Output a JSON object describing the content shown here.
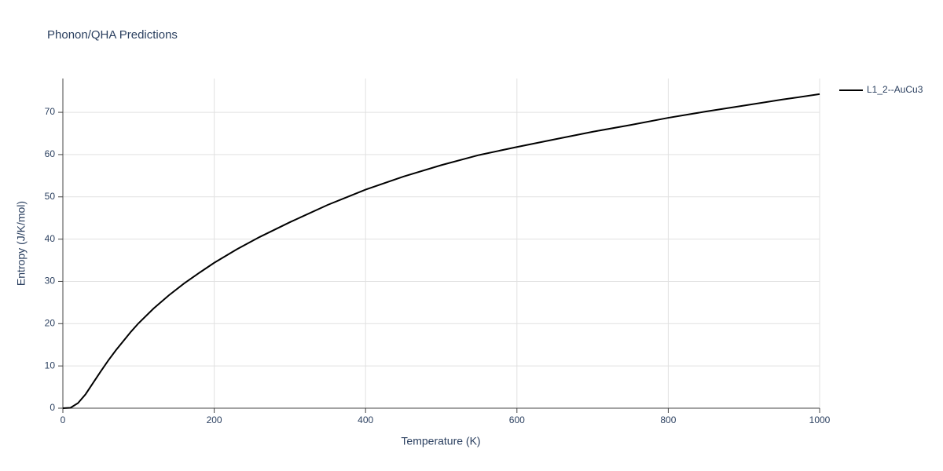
{
  "chart_data": {
    "type": "line",
    "title": "Phonon/QHA Predictions",
    "x_label": "Temperature (K)",
    "y_label": "Entropy (J/K/mol)",
    "x": [
      0,
      10,
      20,
      30,
      40,
      50,
      60,
      70,
      80,
      90,
      100,
      120,
      140,
      160,
      180,
      200,
      230,
      260,
      300,
      350,
      400,
      450,
      500,
      550,
      600,
      650,
      700,
      750,
      800,
      850,
      900,
      950,
      1000
    ],
    "series": [
      {
        "name": "L1_2--AuCu3",
        "color": "#000000",
        "values": [
          0,
          0.1,
          1.2,
          3.3,
          6,
          8.7,
          11.3,
          13.7,
          15.9,
          18.1,
          20.1,
          23.6,
          26.7,
          29.5,
          32,
          34.4,
          37.6,
          40.5,
          44,
          48.1,
          51.7,
          54.8,
          57.5,
          59.9,
          61.8,
          63.6,
          65.4,
          67,
          68.7,
          70.2,
          71.6,
          73,
          74.3
        ]
      }
    ],
    "xlim": [
      0,
      1000
    ],
    "xticks": [
      0,
      200,
      400,
      600,
      800,
      1000
    ],
    "ylim": [
      0,
      78
    ],
    "yticks": [
      0,
      10,
      20,
      30,
      40,
      50,
      60,
      70
    ],
    "grid": true,
    "legend": "top-right"
  }
}
